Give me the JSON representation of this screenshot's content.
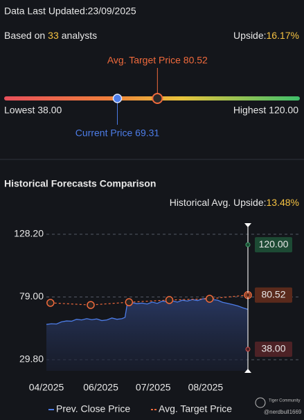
{
  "header": {
    "updated": "Data Last Updated:23/09/2025",
    "based_prefix": "Based on",
    "analysts": 33,
    "based_suffix": "analysts",
    "upside_label": "Upside:",
    "upside_value": "16.17%"
  },
  "gauge": {
    "target": {
      "value": 80.52,
      "label": "Avg. Target Price 80.52"
    },
    "lowest": {
      "value": 38,
      "label": "Lowest 38.00"
    },
    "highest": {
      "value": 120,
      "label": "Highest 120.00"
    },
    "current": {
      "value": 69.31,
      "label": "Current Price 69.31"
    }
  },
  "chart_data": {
    "type": "line",
    "title": "Historical Forecasts Comparison",
    "subtitle_label": "Historical Avg. Upside:",
    "subtitle_value": "13.48%",
    "xlim": [
      0,
      100
    ],
    "xticks": [
      {
        "value": 0,
        "label": "04/2025"
      },
      {
        "value": 27,
        "label": "06/2025"
      },
      {
        "value": 53,
        "label": "07/2025"
      },
      {
        "value": 79,
        "label": "08/2025"
      }
    ],
    "ylim": [
      29.8,
      128.2
    ],
    "yticks": [
      {
        "value": 29.8,
        "label": "29.80"
      },
      {
        "value": 79,
        "label": "79.00"
      },
      {
        "value": 128.2,
        "label": "128.20"
      }
    ],
    "grid": true,
    "series": [
      {
        "name": "Prev. Close Price",
        "color": "#4d7de8",
        "x": [
          0,
          2.5,
          5,
          7.5,
          10,
          12.5,
          15,
          17.5,
          20,
          22.5,
          25,
          27.5,
          30,
          32.5,
          35,
          37.5,
          39,
          40,
          42.5,
          45,
          47.5,
          50,
          52.5,
          55,
          57.5,
          60,
          62.5,
          65,
          67.5,
          70,
          72.5,
          75,
          77.5,
          80,
          82.5,
          85,
          87.5,
          90,
          92.5,
          95,
          97.5,
          100
        ],
        "values": [
          57.5,
          58.0,
          57.8,
          59.5,
          60.2,
          60.0,
          61.5,
          61.0,
          62.0,
          61.2,
          61.8,
          60.5,
          61.0,
          62.5,
          61.5,
          62.0,
          63.0,
          72.5,
          74.5,
          73.8,
          74.2,
          73.5,
          75.0,
          74.0,
          75.8,
          75.2,
          76.0,
          75.0,
          76.5,
          75.8,
          77.0,
          76.2,
          77.5,
          78.0,
          77.0,
          76.5,
          74.8,
          74.0,
          73.0,
          72.0,
          70.5,
          69.31
        ]
      },
      {
        "name": "Avg. Target Price",
        "color": "#f06a3c",
        "x": [
          2,
          22,
          41,
          61,
          81,
          100
        ],
        "values": [
          74.4,
          72.7,
          74.9,
          76.6,
          77.6,
          80.52
        ]
      }
    ],
    "annotations": [
      {
        "value": 120,
        "label": "120.00",
        "color": "#3fa56b",
        "background": "#1d4a34"
      },
      {
        "value": 80.52,
        "label": "80.52",
        "color": "#f06a3c",
        "background": "#5a2a1c"
      },
      {
        "value": 38,
        "label": "38.00",
        "color": "#d9534f",
        "background": "#4d2226"
      }
    ],
    "legend": "bottom"
  },
  "watermark": {
    "brand": "Tiger Community",
    "user": "@nerdbull1669"
  }
}
